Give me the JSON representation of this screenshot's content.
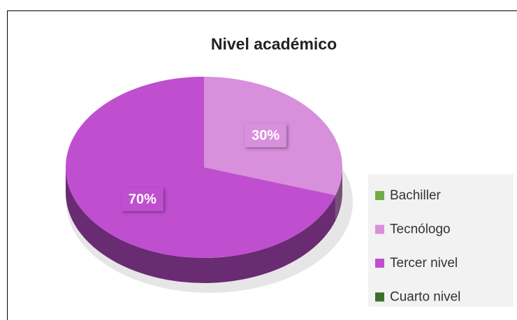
{
  "chart_data": {
    "type": "pie",
    "title": "Nivel académico",
    "categories": [
      "Bachiller",
      "Tecnólogo",
      "Tercer nivel",
      "Cuarto nivel"
    ],
    "values": [
      0,
      30,
      70,
      0
    ],
    "value_labels": [
      null,
      "30%",
      "70%",
      null
    ],
    "colors": [
      "#70ad47",
      "#d88fdc",
      "#bf4fcf",
      "#3e6e2c"
    ],
    "legend": "right"
  }
}
